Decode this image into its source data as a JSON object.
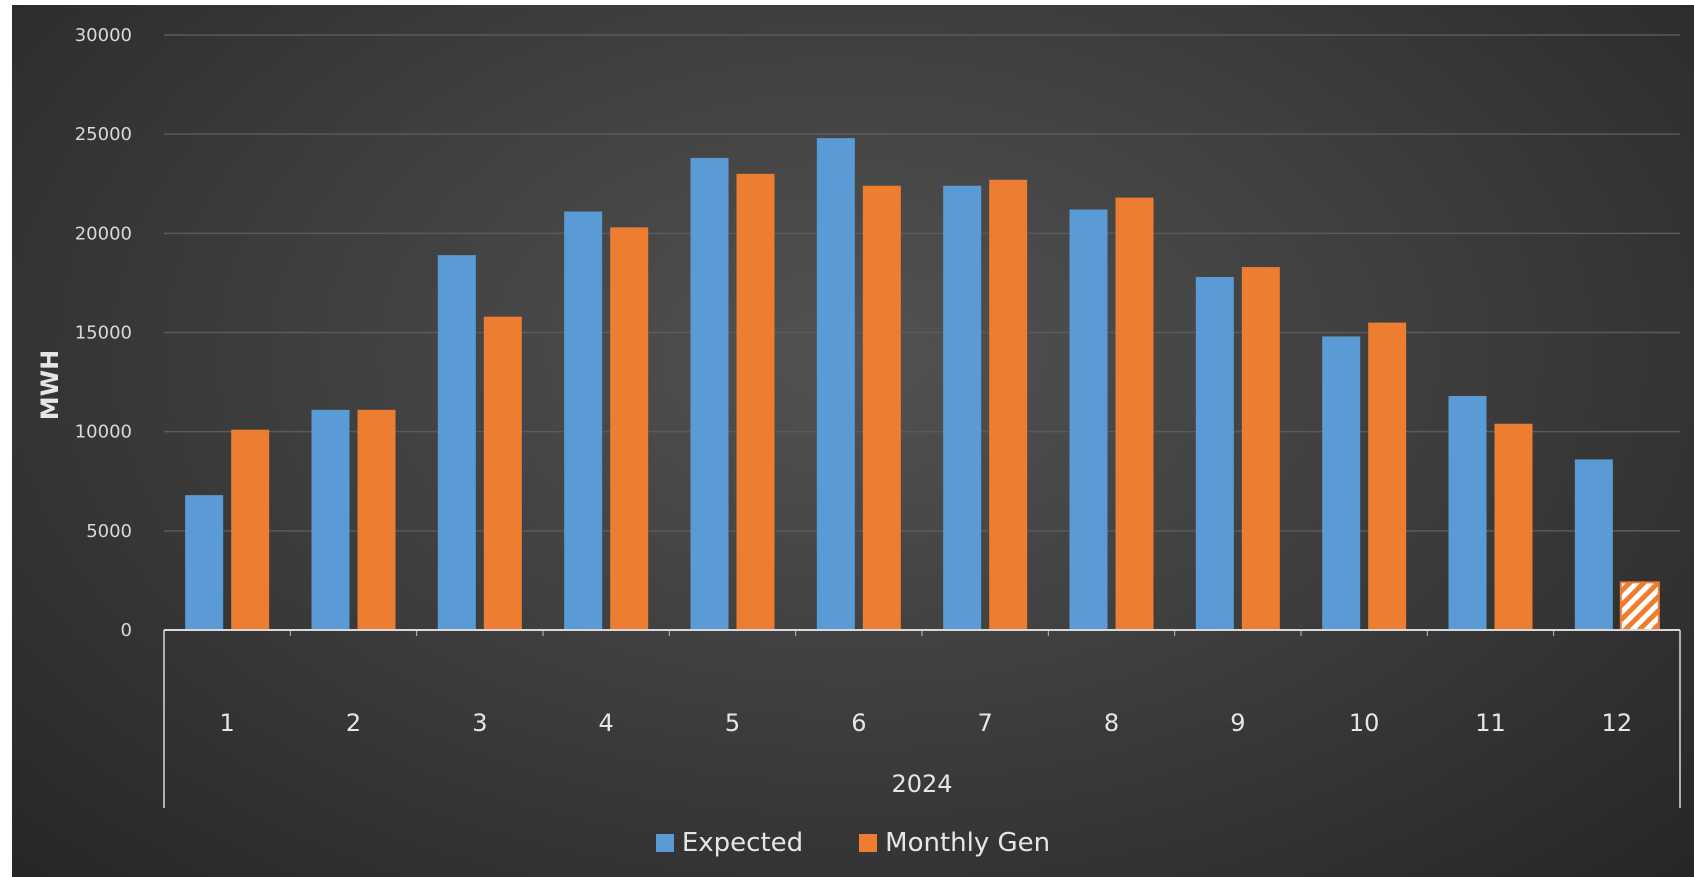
{
  "chart_data": {
    "type": "bar",
    "categories": [
      "1",
      "2",
      "3",
      "4",
      "5",
      "6",
      "7",
      "8",
      "9",
      "10",
      "11",
      "12"
    ],
    "group_label": "2024",
    "series": [
      {
        "name": "Expected",
        "color": "#5b9bd5",
        "values": [
          6800,
          11100,
          18900,
          21100,
          23800,
          24800,
          22400,
          21200,
          17800,
          14800,
          11800,
          8600
        ]
      },
      {
        "name": "Monthly Gen",
        "color": "#ed7d31",
        "values": [
          10100,
          11100,
          15800,
          20300,
          23000,
          22400,
          22700,
          21800,
          18300,
          15500,
          10400,
          2400
        ],
        "partial_last": true
      }
    ],
    "title": "",
    "xlabel": "",
    "ylabel": "MWH",
    "ylim": [
      0,
      30000
    ],
    "yticks": [
      0,
      5000,
      10000,
      15000,
      20000,
      25000,
      30000
    ],
    "grid": true,
    "legend_position": "bottom"
  },
  "legend": {
    "expected_label": "Expected",
    "monthly_gen_label": "Monthly Gen"
  }
}
